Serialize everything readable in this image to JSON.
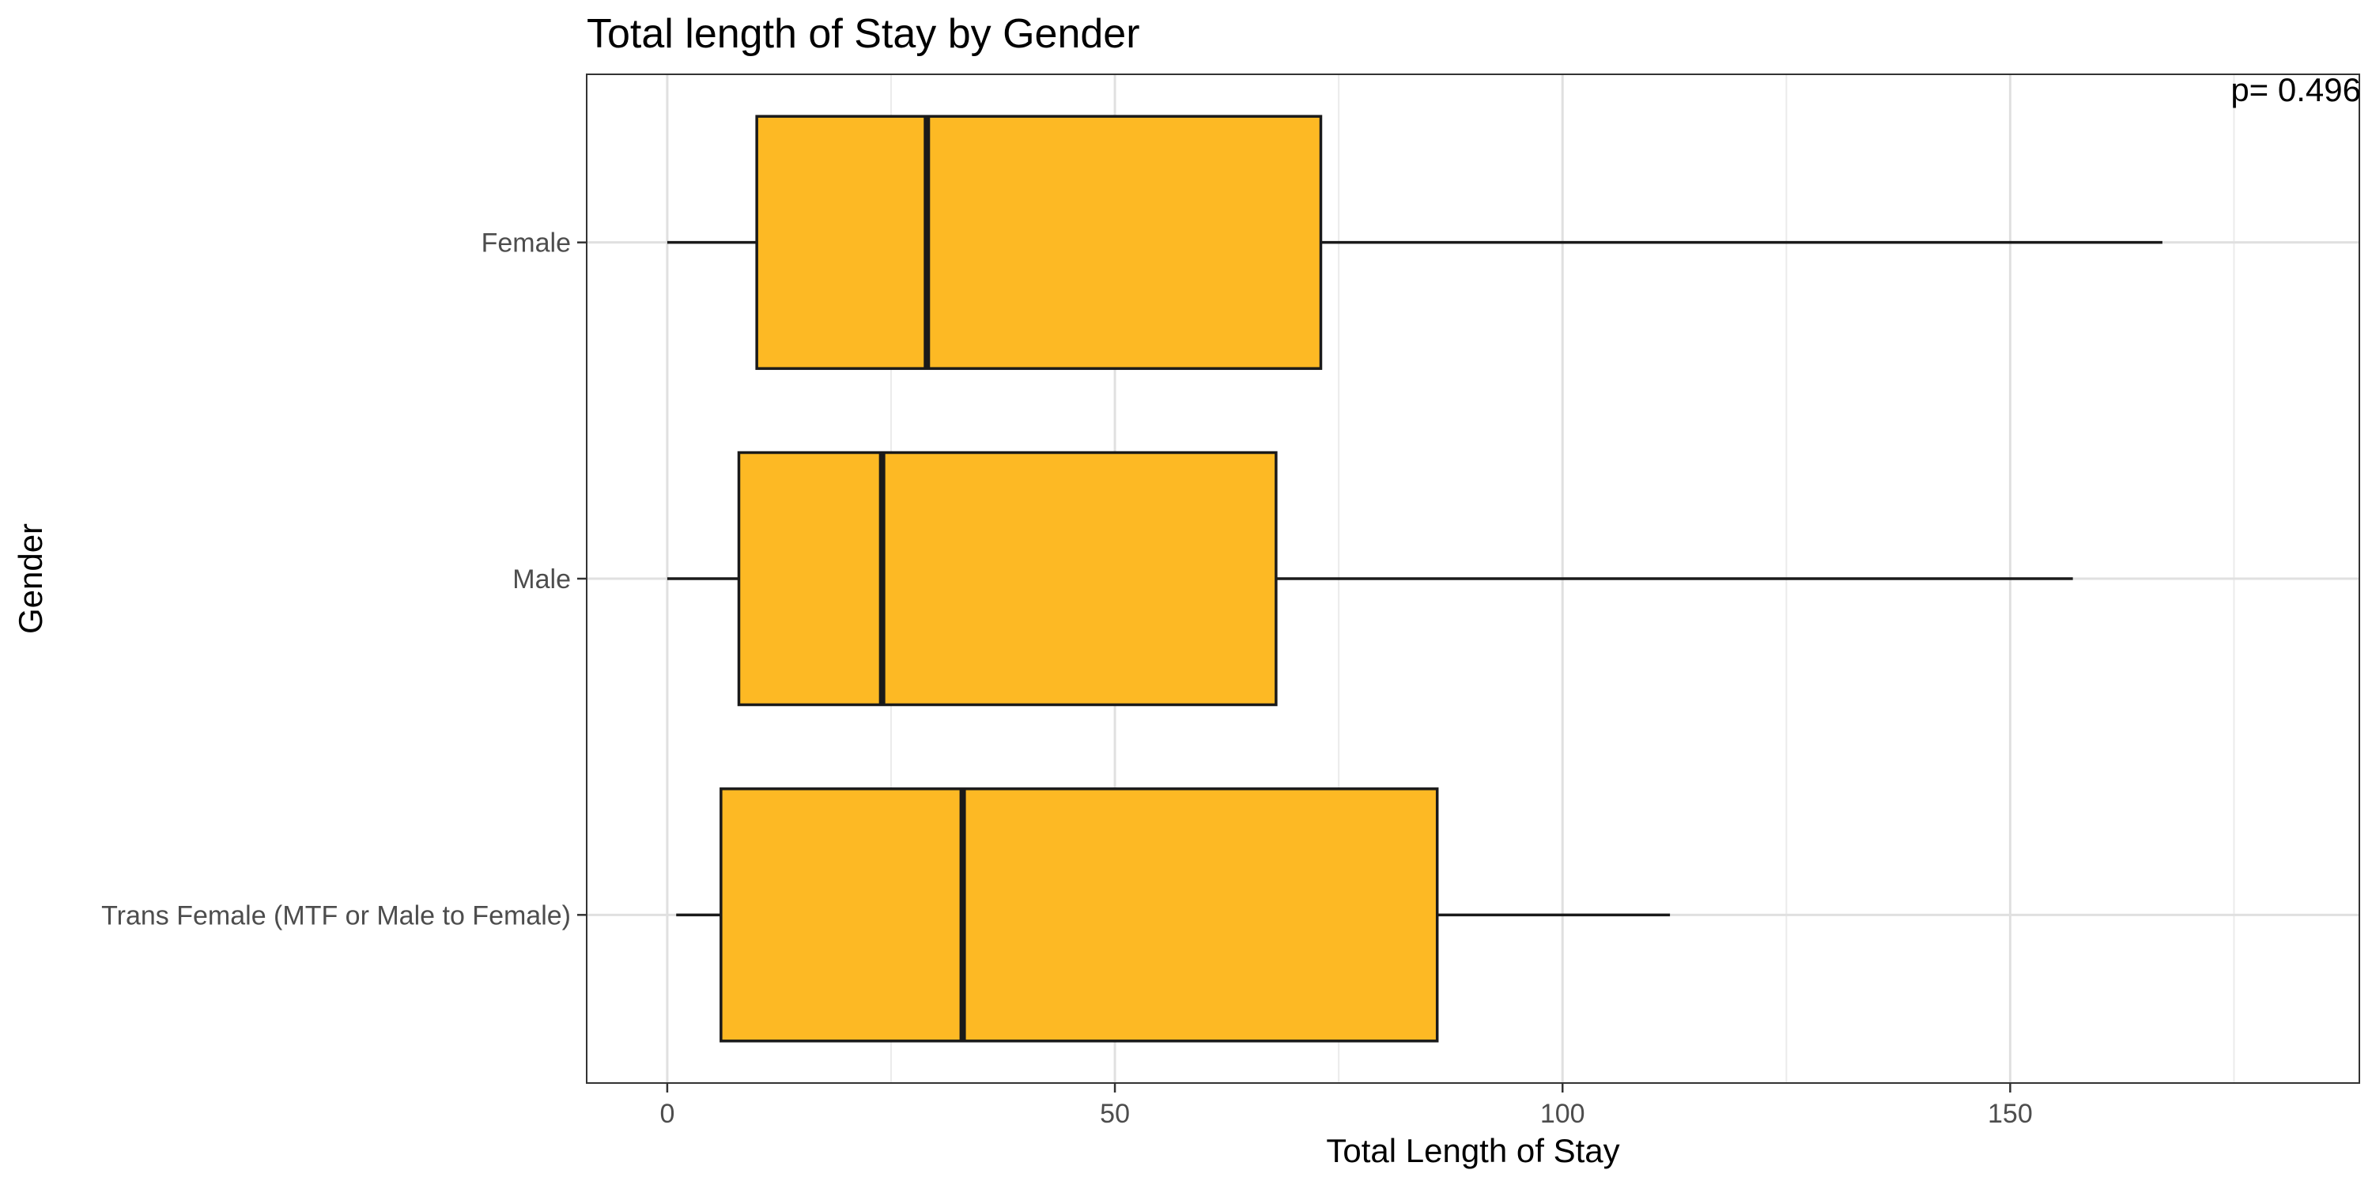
{
  "chart_data": {
    "type": "boxplot",
    "orientation": "horizontal",
    "title": "Total length of Stay by Gender",
    "xlabel": "Total Length of Stay",
    "ylabel": "Gender",
    "annotation": "p= 0.496",
    "xlim": [
      -9,
      189
    ],
    "x_ticks": [
      0,
      50,
      100,
      150
    ],
    "x_tick_labels": [
      "0",
      "50",
      "100",
      "150"
    ],
    "grid": true,
    "box_color": "#FDB924",
    "categories": [
      "Female",
      "Male",
      "Trans Female (MTF or Male to Female)"
    ],
    "boxes": [
      {
        "category": "Female",
        "whisker_low": 0,
        "q1": 10,
        "median": 29,
        "q3": 73,
        "whisker_high": 167
      },
      {
        "category": "Male",
        "whisker_low": 0,
        "q1": 8,
        "median": 24,
        "q3": 68,
        "whisker_high": 157
      },
      {
        "category": "Trans Female (MTF or Male to Female)",
        "whisker_low": 1,
        "q1": 6,
        "median": 33,
        "q3": 86,
        "whisker_high": 112
      }
    ]
  }
}
